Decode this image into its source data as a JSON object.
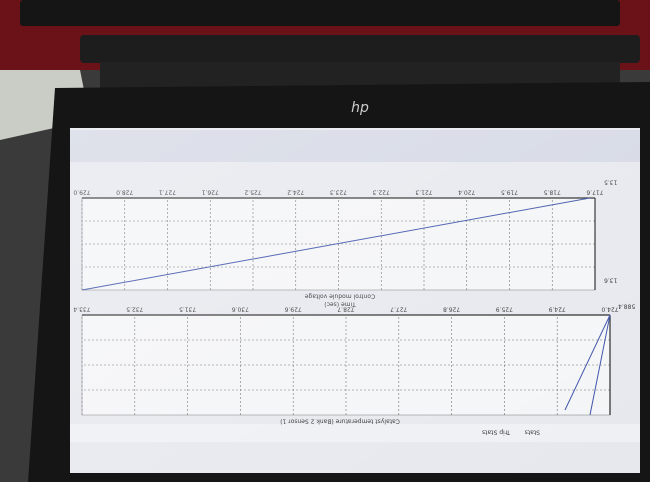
{
  "logo": "hp",
  "top_chart": {
    "x_label": "Time (sec)",
    "title": "Control module voltage",
    "x_ticks": [
      "717.6",
      "718.5",
      "719.5",
      "720.4",
      "721.3",
      "722.3",
      "723.3",
      "724.2",
      "725.2",
      "726.1",
      "727.1",
      "728.0",
      "729.0"
    ],
    "y_ticks": [
      "13.6",
      "13.5"
    ]
  },
  "bottom_chart": {
    "title": "Catalyst temperature (Bank 2 Sensor 1)",
    "x_ticks": [
      "724.0",
      "724.9",
      "725.9",
      "726.8",
      "727.7",
      "728.7",
      "729.6",
      "730.6",
      "731.5",
      "732.5",
      "733.4"
    ],
    "y_ticks": [
      "588.4"
    ]
  },
  "tabs": [
    "Stats",
    "Trip Stats"
  ]
}
